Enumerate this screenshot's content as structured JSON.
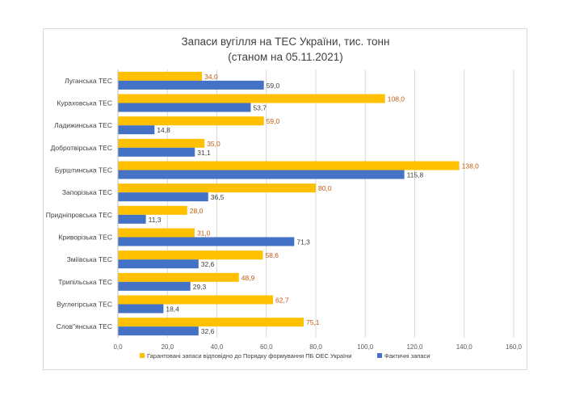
{
  "chart_data": {
    "type": "bar",
    "orientation": "horizontal",
    "title": "Запаси вугілля на ТЕС України, тис. тонн",
    "subtitle": "(станом на 05.11.2021)",
    "categories": [
      "Луганська ТЕС",
      "Кураховська ТЕС",
      "Ладижинська ТЕС",
      "Добротвірська ТЕС",
      "Бурштинська ТЕС",
      "Запорізька ТЕС",
      "Придніпровська ТЕС",
      "Криворізька ТЕС",
      "Зміївська ТЕС",
      "Трипільська ТЕС",
      "Вуглегірська ТЕС",
      "Слов\"янська ТЕС"
    ],
    "series": [
      {
        "name": "Гарантовані запаси відповідно до Порядку формування ПБ ОЕС України",
        "color": "#FFC000",
        "label_color": "#C55A11",
        "values": [
          34.0,
          108.0,
          59.0,
          35.0,
          138.0,
          80.0,
          28.0,
          31.0,
          58.6,
          48.9,
          62.7,
          75.1
        ],
        "labels": [
          "34,0",
          "108,0",
          "59,0",
          "35,0",
          "138,0",
          "80,0",
          "28,0",
          "31,0",
          "58,6",
          "48,9",
          "62,7",
          "75,1"
        ]
      },
      {
        "name": "Фактичні запаси",
        "color": "#4472C4",
        "label_color": "#404040",
        "values": [
          59.0,
          53.7,
          14.8,
          31.1,
          115.8,
          36.5,
          11.3,
          71.3,
          32.6,
          29.3,
          18.4,
          32.6
        ],
        "labels": [
          "59,0",
          "53,7",
          "14,8",
          "31,1",
          "115,8",
          "36,5",
          "11,3",
          "71,3",
          "32,6",
          "29,3",
          "18,4",
          "32,6"
        ]
      }
    ],
    "xlim": [
      0,
      160
    ],
    "xticks": [
      0,
      20,
      40,
      60,
      80,
      100,
      120,
      140,
      160
    ],
    "xtick_labels": [
      "0,0",
      "20,0",
      "40,0",
      "60,0",
      "80,0",
      "100,0",
      "120,0",
      "140,0",
      "160,0"
    ],
    "grid": true,
    "legend": "bottom"
  }
}
